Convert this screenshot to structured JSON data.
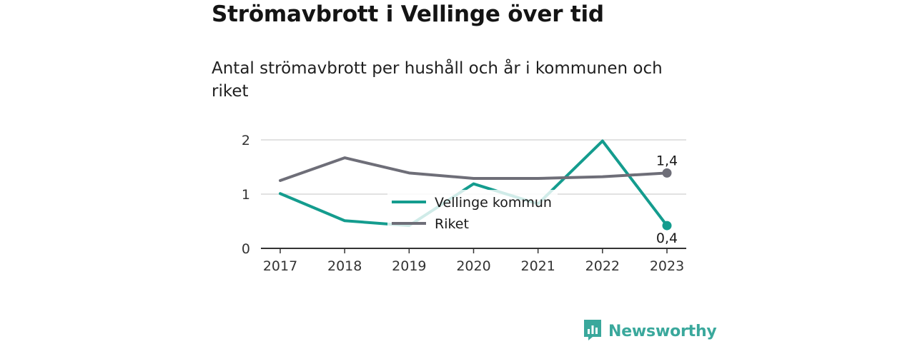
{
  "title": "Strömavbrott i Vellinge över tid",
  "subtitle": "Antal strömavbrott per hushåll och år i kommunen och riket",
  "brand": {
    "name": "Newsworthy",
    "icon": "newsworthy-logo-icon",
    "color": "#3aa89c"
  },
  "chart_data": {
    "type": "line",
    "x": [
      "2017",
      "2018",
      "2019",
      "2020",
      "2021",
      "2022",
      "2023"
    ],
    "ylim": [
      0,
      2
    ],
    "yticks": [
      "0",
      "1",
      "2"
    ],
    "grid": true,
    "legend_position": "center",
    "series": [
      {
        "name": "Vellinge kommun",
        "color": "#149c8e",
        "values": [
          1.01,
          0.51,
          0.42,
          1.19,
          0.82,
          1.98,
          0.42
        ],
        "end_label": "0,4"
      },
      {
        "name": "Riket",
        "color": "#6e6e78",
        "values": [
          1.25,
          1.67,
          1.39,
          1.29,
          1.29,
          1.32,
          1.39
        ],
        "end_label": "1,4"
      }
    ]
  }
}
